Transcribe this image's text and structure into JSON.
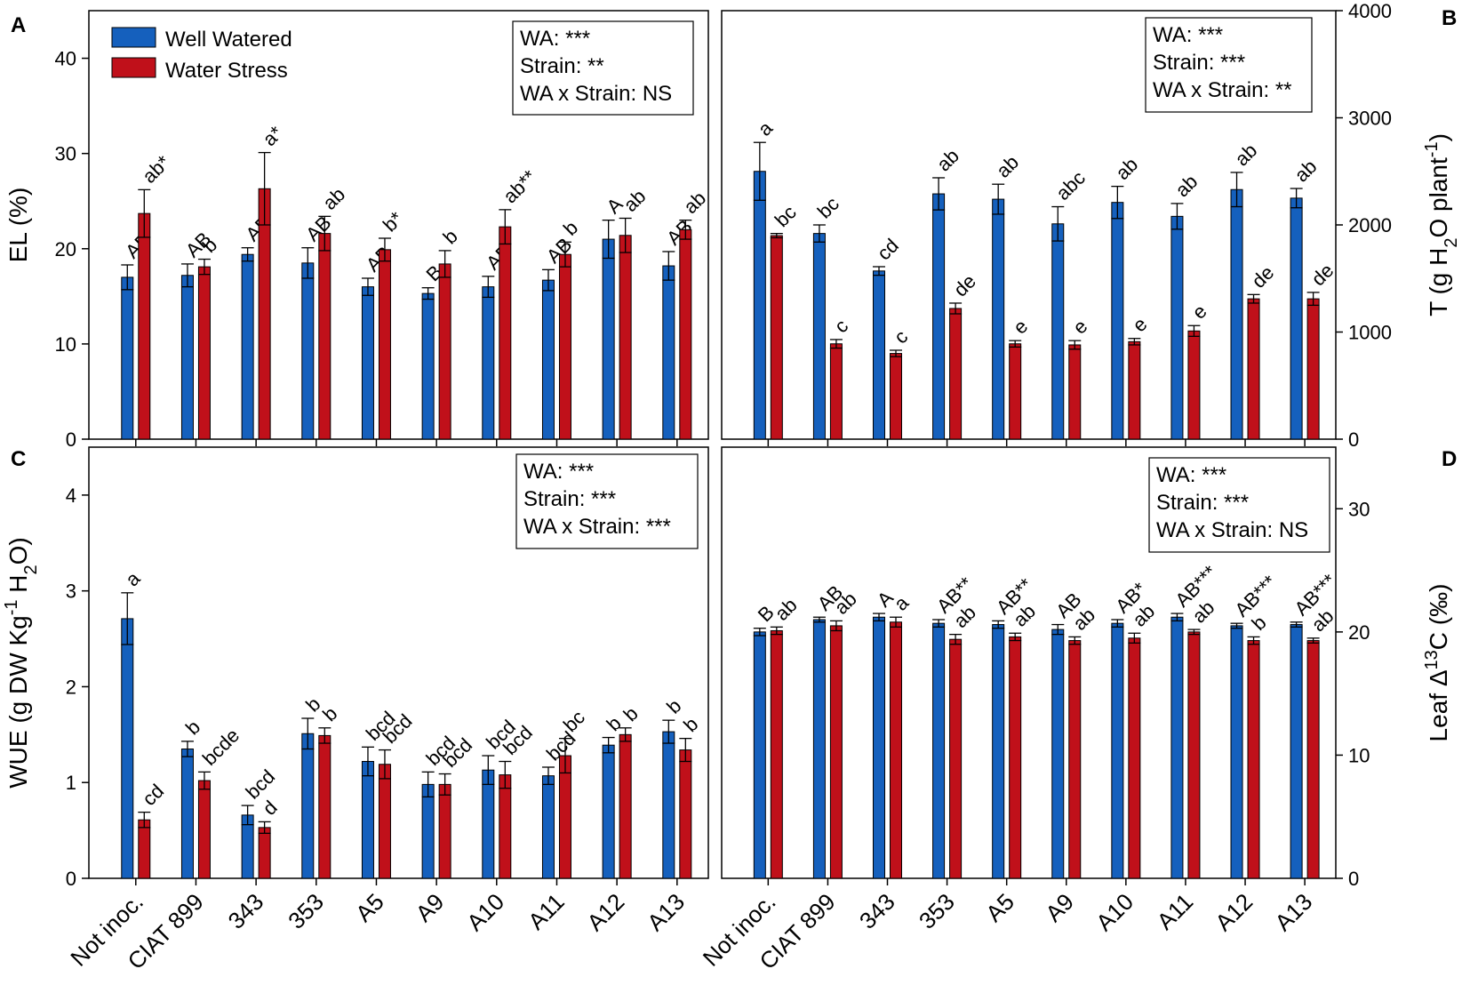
{
  "colors": {
    "well_watered": "#1560bd",
    "water_stress": "#c0101a"
  },
  "legend": {
    "well_watered": "Well Watered",
    "water_stress": "Water Stress"
  },
  "chart_data": [
    {
      "panel": "A",
      "type": "bar",
      "categories": [
        "Not inoc.",
        "CIAT 899",
        "343",
        "353",
        "A5",
        "A9",
        "A10",
        "A11",
        "A12",
        "A13"
      ],
      "ylabel": "EL (%)",
      "ylim": [
        0,
        45
      ],
      "yticks": [
        0,
        10,
        20,
        30,
        40
      ],
      "yaxis_side": "left",
      "show_xlabels": false,
      "series": [
        {
          "name": "Well Watered",
          "values": [
            17.0,
            17.2,
            19.4,
            18.5,
            16.0,
            15.3,
            16.0,
            16.7,
            21.0,
            18.2
          ],
          "errors": [
            1.3,
            1.2,
            0.7,
            1.6,
            0.9,
            0.6,
            1.1,
            1.1,
            2.0,
            1.5
          ],
          "labels": [
            "AB",
            "AB",
            "AB",
            "AB",
            "AB",
            "B",
            "AB",
            "AB",
            "A",
            "AB"
          ]
        },
        {
          "name": "Water Stress",
          "values": [
            23.7,
            18.1,
            26.3,
            21.6,
            19.9,
            18.4,
            22.3,
            19.4,
            21.4,
            22.0
          ],
          "errors": [
            2.5,
            0.8,
            3.8,
            1.8,
            1.2,
            1.4,
            1.8,
            1.3,
            1.8,
            1.0
          ],
          "labels": [
            "ab*",
            "b",
            "a*",
            "ab",
            "b*",
            "b",
            "ab**",
            "b",
            "ab",
            "ab"
          ]
        }
      ],
      "stats": [
        "WA: ***",
        "Strain: **",
        "WA x Strain: NS"
      ]
    },
    {
      "panel": "B",
      "type": "bar",
      "categories": [
        "Not inoc.",
        "CIAT 899",
        "343",
        "353",
        "A5",
        "A9",
        "A10",
        "A11",
        "A12",
        "A13"
      ],
      "ylabel": "T (g H2O plant-1)",
      "ylim": [
        0,
        4000
      ],
      "yticks": [
        0,
        1000,
        2000,
        3000,
        4000
      ],
      "yaxis_side": "right",
      "show_xlabels": false,
      "series": [
        {
          "name": "Well Watered",
          "values": [
            2500,
            1920,
            1570,
            2290,
            2240,
            2010,
            2210,
            2080,
            2330,
            2250
          ],
          "errors": [
            270,
            80,
            40,
            150,
            140,
            160,
            150,
            120,
            160,
            90
          ],
          "labels": [
            "a",
            "bc",
            "cd",
            "ab",
            "ab",
            "abc",
            "ab",
            "ab",
            "ab",
            "ab"
          ]
        },
        {
          "name": "Water Stress",
          "values": [
            1900,
            890,
            800,
            1220,
            890,
            880,
            910,
            1010,
            1310,
            1310
          ],
          "errors": [
            20,
            40,
            30,
            50,
            30,
            40,
            30,
            50,
            40,
            60
          ],
          "labels": [
            "bc",
            "c",
            "c",
            "de",
            "e",
            "e",
            "e",
            "e",
            "de",
            "de"
          ]
        }
      ],
      "stats": [
        "WA: ***",
        "Strain: ***",
        "WA x Strain: **"
      ]
    },
    {
      "panel": "C",
      "type": "bar",
      "categories": [
        "Not inoc.",
        "CIAT 899",
        "343",
        "353",
        "A5",
        "A9",
        "A10",
        "A11",
        "A12",
        "A13"
      ],
      "ylabel": "WUE (g DW Kg-1 H2O)",
      "ylim": [
        0,
        4.5
      ],
      "yticks": [
        0,
        1,
        2,
        3,
        4
      ],
      "yaxis_side": "left",
      "show_xlabels": true,
      "series": [
        {
          "name": "Well Watered",
          "values": [
            2.71,
            1.35,
            0.66,
            1.51,
            1.22,
            0.98,
            1.13,
            1.07,
            1.39,
            1.53
          ],
          "errors": [
            0.27,
            0.08,
            0.1,
            0.16,
            0.15,
            0.13,
            0.15,
            0.09,
            0.08,
            0.12
          ],
          "labels": [
            "a",
            "b",
            "bcd",
            "b",
            "bcd",
            "bcd",
            "bcd",
            "bcd",
            "b",
            "b"
          ]
        },
        {
          "name": "Water Stress",
          "values": [
            0.61,
            1.02,
            0.53,
            1.49,
            1.19,
            0.98,
            1.08,
            1.28,
            1.5,
            1.34
          ],
          "errors": [
            0.08,
            0.09,
            0.06,
            0.08,
            0.15,
            0.11,
            0.14,
            0.18,
            0.07,
            0.12
          ],
          "labels": [
            "cd",
            "bcde",
            "d",
            "b",
            "bcd",
            "bcd",
            "bcd",
            "bc",
            "b",
            "b"
          ]
        }
      ],
      "stats": [
        "WA: ***",
        "Strain: ***",
        "WA x Strain: ***"
      ]
    },
    {
      "panel": "D",
      "type": "bar",
      "categories": [
        "Not inoc.",
        "CIAT 899",
        "343",
        "353",
        "A5",
        "A9",
        "A10",
        "A11",
        "A12",
        "A13"
      ],
      "ylabel": "Leaf Δ13C (‰)",
      "ylim": [
        0,
        35
      ],
      "yticks": [
        0,
        10,
        20,
        30
      ],
      "yaxis_side": "right",
      "show_xlabels": true,
      "series": [
        {
          "name": "Well Watered",
          "values": [
            20.0,
            21.0,
            21.2,
            20.7,
            20.6,
            20.2,
            20.7,
            21.2,
            20.5,
            20.6
          ],
          "errors": [
            0.3,
            0.2,
            0.3,
            0.3,
            0.3,
            0.4,
            0.3,
            0.3,
            0.2,
            0.2
          ],
          "labels": [
            "B",
            "AB",
            "A",
            "AB**",
            "AB**",
            "AB",
            "AB*",
            "AB***",
            "AB***",
            "AB***"
          ]
        },
        {
          "name": "Water Stress",
          "values": [
            20.1,
            20.5,
            20.8,
            19.4,
            19.6,
            19.3,
            19.5,
            20.0,
            19.3,
            19.3
          ],
          "errors": [
            0.3,
            0.4,
            0.4,
            0.4,
            0.3,
            0.3,
            0.4,
            0.2,
            0.3,
            0.2
          ],
          "labels": [
            "ab",
            "ab",
            "a",
            "ab",
            "ab",
            "ab",
            "ab",
            "ab",
            "b",
            "ab"
          ]
        }
      ],
      "stats": [
        "WA: ***",
        "Strain: ***",
        "WA x Strain: NS"
      ]
    }
  ]
}
